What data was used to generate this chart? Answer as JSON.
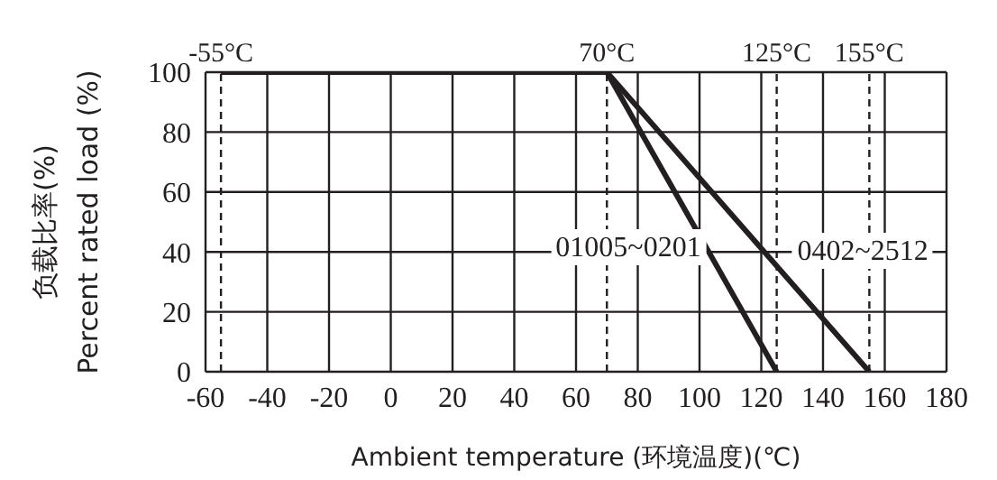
{
  "chart_data": {
    "type": "line",
    "xlabel": "Ambient temperature (环境温度)(℃)",
    "ylabel": "负载比率(%)\nPercent rated load (%)",
    "series": [
      {
        "name": "01005~0201",
        "color": "#231f20",
        "x": [
          -55,
          70,
          125
        ],
        "values": [
          100,
          100,
          0
        ]
      },
      {
        "name": "0402~2512",
        "color": "#231f20",
        "x": [
          -55,
          70,
          155
        ],
        "values": [
          100,
          100,
          0
        ]
      }
    ],
    "xlim": [
      -60,
      180
    ],
    "xticks": [
      -60,
      -40,
      -20,
      0,
      20,
      40,
      60,
      80,
      100,
      120,
      140,
      160,
      180
    ],
    "ylim": [
      0,
      100
    ],
    "yticks": [
      0,
      20,
      40,
      60,
      80,
      100
    ],
    "grid": true,
    "legend": false,
    "marker": "none",
    "line_style": "solid",
    "ref_lines": [
      {
        "axis": "x",
        "value": -55,
        "label": "-55°C",
        "line_style": "dashed",
        "color": "#231f20"
      },
      {
        "axis": "x",
        "value": 70,
        "label": "70°C",
        "line_style": "dashed",
        "color": "#231f20"
      },
      {
        "axis": "x",
        "value": 125,
        "label": "125°C",
        "line_style": "dashed",
        "color": "#231f20"
      },
      {
        "axis": "x",
        "value": 155,
        "label": "155°C",
        "line_style": "dashed",
        "color": "#231f20"
      }
    ]
  }
}
